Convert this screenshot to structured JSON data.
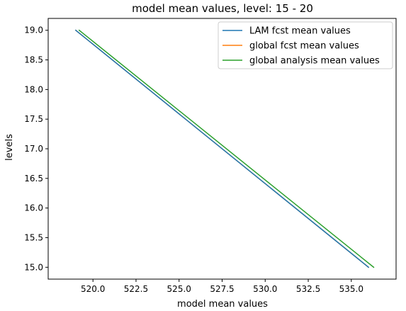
{
  "chart_data": {
    "type": "line",
    "title": "model mean values, level: 15 - 20",
    "xlabel": "model mean values",
    "ylabel": "levels",
    "xlim": [
      517.4,
      537.6
    ],
    "ylim": [
      14.8,
      19.2
    ],
    "xticks": [
      "520.0",
      "522.5",
      "525.0",
      "527.5",
      "530.0",
      "532.5",
      "535.0"
    ],
    "xtick_values": [
      520.0,
      522.5,
      525.0,
      527.5,
      530.0,
      532.5,
      535.0
    ],
    "yticks": [
      "15.0",
      "15.5",
      "16.0",
      "16.5",
      "17.0",
      "17.5",
      "18.0",
      "18.5",
      "19.0"
    ],
    "ytick_values": [
      15.0,
      15.5,
      16.0,
      16.5,
      17.0,
      17.5,
      18.0,
      18.5,
      19.0
    ],
    "grid": false,
    "legend_position": "upper right",
    "series": [
      {
        "name": "LAM fcst mean values",
        "color": "#1f77b4",
        "x": [
          519.0,
          536.0
        ],
        "y": [
          19.0,
          15.0
        ]
      },
      {
        "name": "global fcst mean values",
        "color": "#ff7f0e",
        "x": [
          519.0,
          536.0
        ],
        "y": [
          19.0,
          15.0
        ]
      },
      {
        "name": "global analysis mean values",
        "color": "#2ca02c",
        "x": [
          519.2,
          536.3
        ],
        "y": [
          19.0,
          15.0
        ]
      }
    ]
  }
}
